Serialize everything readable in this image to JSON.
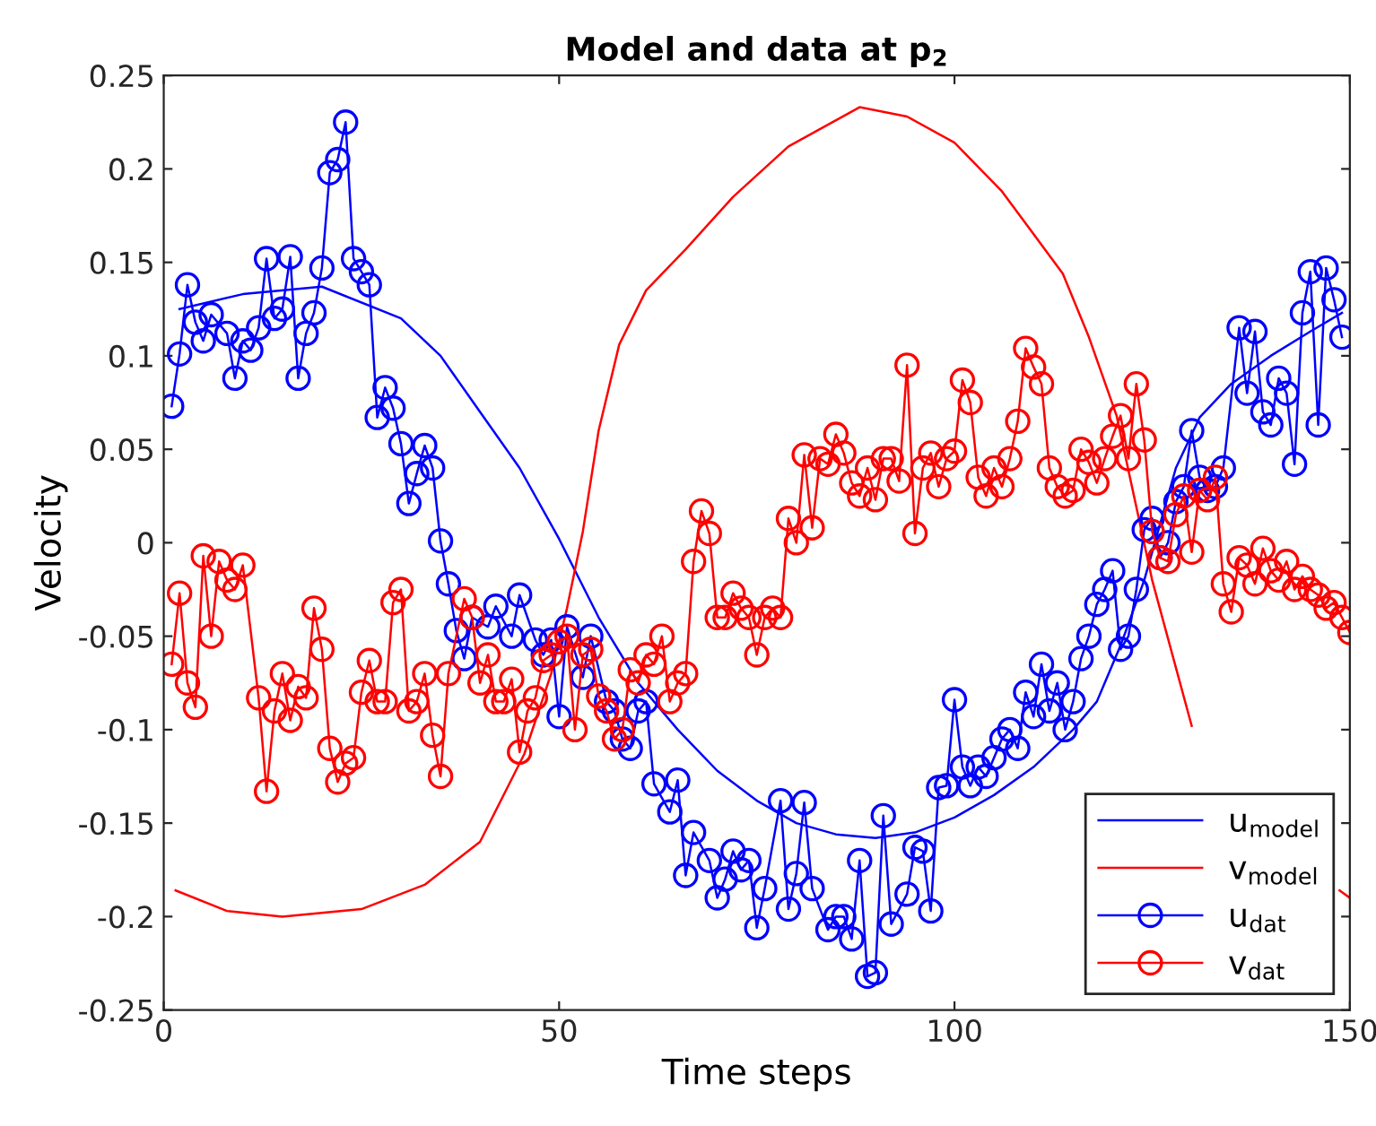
{
  "chart_data": {
    "type": "line",
    "title": "Model and data at p$_{2}$",
    "xlabel": "Time steps",
    "ylabel": "Velocity",
    "xlim": [
      0,
      150
    ],
    "xticks": [
      0,
      50,
      100,
      150
    ],
    "ylim": [
      -0.25,
      0.25
    ],
    "yticks": [
      -0.25,
      -0.2,
      -0.15,
      -0.1,
      -0.05,
      0,
      0.05,
      0.1,
      0.15,
      0.2,
      0.25
    ],
    "grid": false,
    "legend": "bottom right",
    "series": [
      {
        "name": "u$_{model}$",
        "color": "#0000ff",
        "marker": "none",
        "x": [
          2,
          10,
          20,
          30,
          35,
          40,
          45,
          50,
          55,
          60,
          65,
          70,
          75,
          80,
          85,
          90,
          95,
          100,
          105,
          110,
          115,
          118,
          121,
          124,
          126,
          128,
          131,
          135,
          140,
          145,
          149
        ],
        "values": [
          0.125,
          0.133,
          0.137,
          0.12,
          0.1,
          0.07,
          0.04,
          0.002,
          -0.04,
          -0.075,
          -0.1,
          -0.122,
          -0.138,
          -0.15,
          -0.156,
          -0.158,
          -0.155,
          -0.147,
          -0.135,
          -0.12,
          -0.1,
          -0.085,
          -0.055,
          -0.02,
          0.01,
          0.04,
          0.067,
          0.085,
          0.1,
          0.113,
          0.123
        ]
      },
      {
        "name": "v$_{model}$",
        "color": "#ff0000",
        "marker": "none",
        "x": [
          1.5,
          8,
          15,
          25,
          33,
          40,
          45.6,
          49,
          51,
          53,
          55,
          57.6,
          61,
          66,
          72,
          79,
          88,
          94,
          100,
          106,
          113.7,
          117,
          120.5,
          125,
          130,
          135,
          140,
          148.7,
          150
        ],
        "values": [
          -0.186,
          -0.197,
          -0.2,
          -0.196,
          -0.183,
          -0.16,
          -0.113,
          -0.07,
          -0.035,
          0.006,
          0.06,
          0.106,
          0.135,
          0.157,
          0.185,
          0.212,
          0.233,
          0.228,
          0.214,
          0.188,
          0.144,
          0.11,
          0.068,
          -0.02,
          -0.098,
          null,
          null,
          -0.186,
          -0.19
        ]
      },
      {
        "name": "u$_{dat}$",
        "color": "#0000ff",
        "marker": "circle",
        "x": [
          1,
          2,
          3,
          4,
          5,
          6,
          8,
          9,
          10,
          11,
          12,
          13,
          14,
          15,
          16,
          17,
          18,
          19,
          20,
          21,
          22,
          23,
          24,
          25,
          26,
          27,
          28,
          29,
          30,
          31,
          32,
          33,
          34,
          35,
          36,
          37,
          38,
          39,
          41,
          42,
          44,
          45,
          47,
          48,
          49,
          50,
          51,
          53,
          54,
          56,
          57,
          58,
          59,
          60,
          61,
          62,
          64,
          65,
          66,
          67,
          69,
          70,
          71,
          72,
          73,
          74,
          75,
          76,
          78,
          79,
          80,
          81,
          82,
          84,
          85,
          86,
          87,
          88,
          89,
          90,
          91,
          92,
          94,
          95,
          96,
          97,
          98,
          99,
          100,
          101,
          102,
          103,
          104,
          105,
          106,
          107,
          108,
          109,
          110,
          111,
          112,
          113,
          114,
          115,
          116,
          117,
          118,
          119,
          120,
          121,
          122,
          123,
          124,
          125,
          126,
          127,
          128,
          129,
          130,
          131,
          132,
          133,
          134,
          136,
          137,
          138,
          139,
          140,
          141,
          142,
          143,
          144,
          145,
          146,
          147,
          148,
          149
        ],
        "values": [
          0.073,
          0.101,
          0.138,
          0.118,
          0.108,
          0.122,
          0.112,
          0.088,
          0.108,
          0.103,
          0.115,
          0.152,
          0.12,
          0.125,
          0.153,
          0.088,
          0.112,
          0.123,
          0.147,
          0.198,
          0.205,
          0.225,
          0.152,
          0.145,
          0.138,
          0.067,
          0.083,
          0.072,
          0.053,
          0.021,
          0.037,
          0.052,
          0.04,
          0.001,
          -0.022,
          -0.047,
          -0.062,
          -0.04,
          -0.045,
          -0.034,
          -0.05,
          -0.028,
          -0.052,
          -0.06,
          -0.052,
          -0.093,
          -0.045,
          -0.072,
          -0.05,
          -0.085,
          -0.09,
          -0.105,
          -0.11,
          -0.09,
          -0.085,
          -0.129,
          -0.144,
          -0.127,
          -0.178,
          -0.155,
          -0.17,
          -0.19,
          -0.18,
          -0.165,
          -0.175,
          -0.17,
          -0.206,
          -0.185,
          -0.138,
          -0.196,
          -0.177,
          -0.139,
          -0.185,
          -0.207,
          -0.2,
          -0.2,
          -0.212,
          -0.17,
          -0.232,
          -0.23,
          -0.146,
          -0.204,
          -0.188,
          -0.163,
          -0.165,
          -0.197,
          -0.131,
          -0.13,
          -0.084,
          -0.12,
          -0.13,
          -0.12,
          -0.125,
          -0.115,
          -0.105,
          -0.1,
          -0.11,
          -0.08,
          -0.093,
          -0.065,
          -0.09,
          -0.075,
          -0.1,
          -0.085,
          -0.062,
          -0.05,
          -0.033,
          -0.025,
          -0.015,
          -0.057,
          -0.05,
          -0.025,
          0.007,
          0.013,
          -0.008,
          0.0,
          0.022,
          0.03,
          0.06,
          0.035,
          0.028,
          0.03,
          0.04,
          0.115,
          0.08,
          0.113,
          0.07,
          0.063,
          0.088,
          0.08,
          0.042,
          0.123,
          0.145,
          0.063,
          0.147,
          0.13,
          0.11
        ]
      },
      {
        "name": "v$_{dat}$",
        "color": "#ff0000",
        "marker": "circle",
        "x": [
          1,
          2,
          3,
          4,
          5,
          6,
          7,
          8,
          9,
          10,
          12,
          13,
          14,
          15,
          16,
          17,
          18,
          19,
          20,
          21,
          22,
          23,
          24,
          25,
          26,
          27,
          28,
          29,
          30,
          31,
          32,
          33,
          34,
          35,
          36,
          38,
          39,
          40,
          41,
          42,
          43,
          44,
          45,
          46,
          47,
          48,
          49,
          50,
          51,
          52,
          53,
          54,
          55,
          56,
          57,
          58,
          59,
          60,
          61,
          62,
          63,
          64,
          65,
          66,
          67,
          68,
          69,
          70,
          71,
          72,
          73,
          74,
          75,
          76,
          77,
          78,
          79,
          80,
          81,
          82,
          83,
          84,
          85,
          86,
          87,
          88,
          89,
          90,
          91,
          92,
          93,
          94,
          95,
          96,
          97,
          98,
          99,
          100,
          101,
          102,
          103,
          104,
          105,
          106,
          107,
          108,
          109,
          110,
          111,
          112,
          113,
          114,
          115,
          116,
          117,
          118,
          119,
          120,
          121,
          122,
          123,
          124,
          125,
          126,
          127,
          128,
          129,
          130,
          131,
          132,
          133,
          134,
          135,
          136,
          137,
          138,
          139,
          140,
          141,
          142,
          143,
          144,
          145,
          146,
          147,
          148,
          149,
          150
        ],
        "values": [
          -0.065,
          -0.027,
          -0.075,
          -0.088,
          -0.007,
          -0.05,
          -0.01,
          -0.02,
          -0.025,
          -0.012,
          -0.083,
          -0.133,
          -0.09,
          -0.07,
          -0.095,
          -0.077,
          -0.083,
          -0.035,
          -0.057,
          -0.11,
          -0.128,
          -0.118,
          -0.115,
          -0.08,
          -0.063,
          -0.085,
          -0.085,
          -0.032,
          -0.025,
          -0.09,
          -0.085,
          -0.07,
          -0.103,
          -0.125,
          -0.07,
          -0.03,
          -0.04,
          -0.075,
          -0.06,
          -0.085,
          -0.085,
          -0.073,
          -0.112,
          -0.09,
          -0.083,
          -0.063,
          -0.06,
          -0.053,
          -0.05,
          -0.1,
          -0.06,
          -0.057,
          -0.082,
          -0.09,
          -0.105,
          -0.1,
          -0.068,
          -0.075,
          -0.06,
          -0.065,
          -0.05,
          -0.085,
          -0.075,
          -0.07,
          -0.01,
          0.017,
          0.005,
          -0.04,
          -0.04,
          -0.027,
          -0.035,
          -0.04,
          -0.06,
          -0.04,
          -0.035,
          -0.04,
          0.013,
          0.0,
          0.047,
          0.008,
          0.045,
          0.042,
          0.058,
          0.048,
          0.032,
          0.025,
          0.04,
          0.023,
          0.045,
          0.045,
          0.033,
          0.095,
          0.005,
          0.04,
          0.048,
          0.03,
          0.045,
          0.049,
          0.087,
          0.075,
          0.035,
          0.025,
          0.04,
          0.03,
          0.045,
          0.065,
          0.104,
          0.094,
          0.085,
          0.04,
          0.03,
          0.025,
          0.028,
          0.05,
          0.043,
          0.032,
          0.045,
          0.057,
          0.068,
          0.045,
          0.085,
          0.055,
          0.006,
          -0.008,
          -0.01,
          0.015,
          0.025,
          -0.005,
          0.028,
          0.023,
          0.035,
          -0.022,
          -0.037,
          -0.008,
          -0.012,
          -0.022,
          -0.003,
          -0.015,
          -0.02,
          -0.01,
          -0.025,
          -0.018,
          -0.025,
          -0.028,
          -0.035,
          -0.032,
          -0.04,
          -0.048
        ]
      }
    ]
  }
}
